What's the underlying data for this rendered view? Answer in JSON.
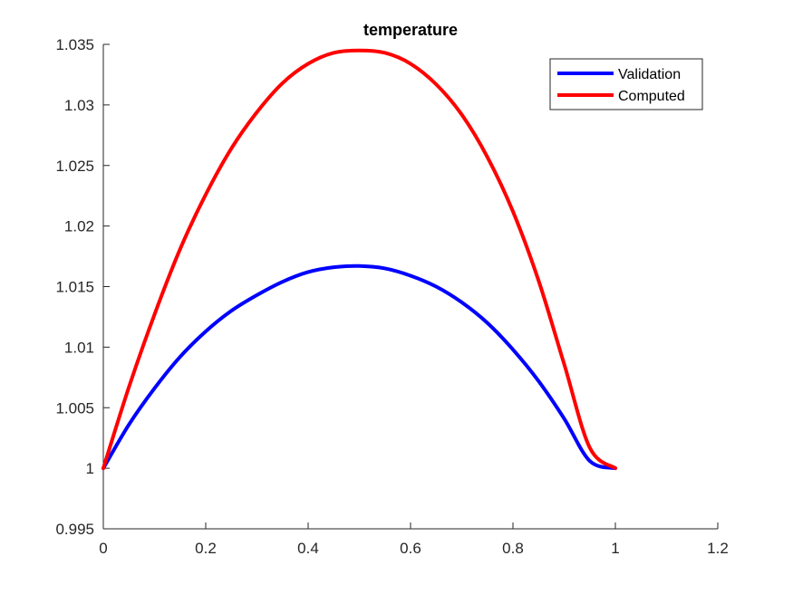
{
  "chart_data": {
    "type": "line",
    "title": "temperature",
    "xlabel": "",
    "ylabel": "",
    "xlim": [
      0,
      1.2
    ],
    "ylim": [
      0.995,
      1.035
    ],
    "x_ticks": [
      0,
      0.2,
      0.4,
      0.6,
      0.8,
      1,
      1.2
    ],
    "x_tick_labels": [
      "0",
      "0.2",
      "0.4",
      "0.6",
      "0.8",
      "1",
      "1.2"
    ],
    "y_ticks": [
      0.995,
      1,
      1.005,
      1.01,
      1.015,
      1.02,
      1.025,
      1.03,
      1.035
    ],
    "y_tick_labels": [
      "0.995",
      "1",
      "1.005",
      "1.01",
      "1.015",
      "1.02",
      "1.025",
      "1.03",
      "1.035"
    ],
    "grid": false,
    "legend_position": "top-right",
    "series": [
      {
        "name": "Validation",
        "color": "#0000ff",
        "x": [
          0,
          0.05,
          0.1,
          0.15,
          0.2,
          0.25,
          0.3,
          0.35,
          0.4,
          0.45,
          0.5,
          0.55,
          0.6,
          0.65,
          0.7,
          0.75,
          0.8,
          0.85,
          0.9,
          0.95,
          1
        ],
        "y": [
          1.0,
          1.0036,
          1.0066,
          1.0092,
          1.0113,
          1.013,
          1.0143,
          1.0154,
          1.0162,
          1.0166,
          1.0167,
          1.0165,
          1.0159,
          1.015,
          1.0137,
          1.012,
          1.0098,
          1.0072,
          1.0041,
          1.0006,
          1.0
        ]
      },
      {
        "name": "Computed",
        "color": "#ff0000",
        "x": [
          0,
          0.05,
          0.1,
          0.15,
          0.2,
          0.25,
          0.3,
          0.35,
          0.4,
          0.45,
          0.5,
          0.55,
          0.6,
          0.65,
          0.7,
          0.75,
          0.8,
          0.85,
          0.9,
          0.95,
          1
        ],
        "y": [
          1.0,
          1.0067,
          1.0127,
          1.0181,
          1.0226,
          1.0264,
          1.0294,
          1.0318,
          1.0334,
          1.0343,
          1.0345,
          1.0343,
          1.0334,
          1.0317,
          1.0292,
          1.0257,
          1.0212,
          1.0155,
          1.0086,
          1.0017,
          1.0
        ]
      }
    ]
  }
}
